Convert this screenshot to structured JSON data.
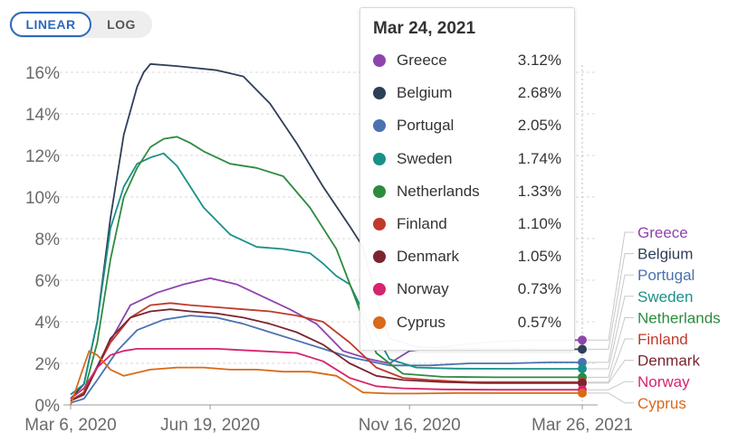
{
  "scale_toggle": {
    "linear_label": "LINEAR",
    "log_label": "LOG",
    "selected": "LINEAR"
  },
  "tooltip": {
    "date": "Mar 24, 2021",
    "rows": [
      {
        "name": "Greece",
        "value": "3.12%",
        "color": "#8e44ad"
      },
      {
        "name": "Belgium",
        "value": "2.68%",
        "color": "#2e3f58"
      },
      {
        "name": "Portugal",
        "value": "2.05%",
        "color": "#4a72b0"
      },
      {
        "name": "Sweden",
        "value": "1.74%",
        "color": "#199088"
      },
      {
        "name": "Netherlands",
        "value": "1.33%",
        "color": "#2e8b3e"
      },
      {
        "name": "Finland",
        "value": "1.10%",
        "color": "#c0392b"
      },
      {
        "name": "Denmark",
        "value": "1.05%",
        "color": "#7b2530"
      },
      {
        "name": "Norway",
        "value": "0.73%",
        "color": "#d6246e"
      },
      {
        "name": "Cyprus",
        "value": "0.57%",
        "color": "#d86a1a"
      }
    ]
  },
  "chart_data": {
    "type": "line",
    "x_ticks": [
      "Mar 6, 2020",
      "Jun 19, 2020",
      "Nov 16, 2020",
      "Mar 26, 2021"
    ],
    "x_tick_days": [
      0,
      105,
      255,
      385
    ],
    "y_ticks": [
      "0%",
      "2%",
      "4%",
      "6%",
      "8%",
      "10%",
      "12%",
      "14%",
      "16%"
    ],
    "y_tick_values": [
      0,
      2,
      4,
      6,
      8,
      10,
      12,
      14,
      16
    ],
    "ylim": [
      0,
      16.5
    ],
    "xlim": [
      0,
      385
    ],
    "grid": true,
    "x_unit": "days from Mar 6, 2020",
    "series": [
      {
        "name": "Greece",
        "color": "#8e44ad",
        "x": [
          0,
          10,
          25,
          45,
          65,
          85,
          105,
          125,
          145,
          165,
          185,
          205,
          225,
          240,
          255,
          280,
          310,
          340,
          370,
          385
        ],
        "y": [
          0.2,
          0.6,
          2.5,
          4.8,
          5.4,
          5.8,
          6.1,
          5.8,
          5.2,
          4.6,
          3.9,
          2.6,
          2.2,
          2.0,
          2.6,
          2.8,
          3.0,
          3.1,
          3.1,
          3.12
        ]
      },
      {
        "name": "Belgium",
        "color": "#2e3f58",
        "x": [
          0,
          10,
          20,
          30,
          40,
          50,
          55,
          60,
          80,
          110,
          130,
          150,
          170,
          190,
          210,
          220,
          230,
          240,
          260,
          290,
          330,
          385
        ],
        "y": [
          0.3,
          1.0,
          4.0,
          9.0,
          13.0,
          15.3,
          16.0,
          16.4,
          16.3,
          16.1,
          15.8,
          14.5,
          12.6,
          10.5,
          8.6,
          7.6,
          5.2,
          3.2,
          2.8,
          2.7,
          2.7,
          2.68
        ]
      },
      {
        "name": "Portugal",
        "color": "#4a72b0",
        "x": [
          0,
          10,
          20,
          35,
          50,
          70,
          90,
          110,
          130,
          150,
          170,
          190,
          210,
          240,
          270,
          300,
          330,
          360,
          385
        ],
        "y": [
          0.1,
          0.3,
          1.2,
          2.6,
          3.6,
          4.1,
          4.3,
          4.2,
          3.9,
          3.5,
          3.1,
          2.7,
          2.3,
          1.9,
          1.9,
          2.0,
          2.0,
          2.05,
          2.05
        ]
      },
      {
        "name": "Sweden",
        "color": "#199088",
        "x": [
          0,
          10,
          20,
          30,
          40,
          50,
          60,
          70,
          80,
          100,
          120,
          140,
          160,
          180,
          190,
          200,
          210,
          220,
          240,
          260,
          290,
          330,
          385
        ],
        "y": [
          0.5,
          1.0,
          4.0,
          8.5,
          10.5,
          11.6,
          11.9,
          12.1,
          11.5,
          9.5,
          8.2,
          7.6,
          7.5,
          7.3,
          6.8,
          6.2,
          5.8,
          4.5,
          2.2,
          1.8,
          1.75,
          1.74,
          1.74
        ]
      },
      {
        "name": "Netherlands",
        "color": "#2e8b3e",
        "x": [
          0,
          10,
          20,
          30,
          40,
          50,
          60,
          70,
          80,
          90,
          100,
          120,
          140,
          160,
          180,
          200,
          215,
          230,
          250,
          280,
          320,
          385
        ],
        "y": [
          0.2,
          0.6,
          3.0,
          7.0,
          10.0,
          11.4,
          12.4,
          12.8,
          12.9,
          12.6,
          12.2,
          11.6,
          11.4,
          11.0,
          9.5,
          7.5,
          5.0,
          2.5,
          1.5,
          1.35,
          1.33,
          1.33
        ]
      },
      {
        "name": "Finland",
        "color": "#c0392b",
        "x": [
          0,
          10,
          20,
          30,
          45,
          60,
          75,
          90,
          110,
          130,
          150,
          170,
          190,
          210,
          230,
          250,
          270,
          300,
          330,
          360,
          385
        ],
        "y": [
          0.2,
          0.6,
          1.8,
          3.0,
          4.2,
          4.8,
          4.9,
          4.8,
          4.7,
          4.6,
          4.5,
          4.3,
          4.0,
          3.0,
          1.8,
          1.3,
          1.2,
          1.1,
          1.1,
          1.1,
          1.1
        ]
      },
      {
        "name": "Denmark",
        "color": "#7b2530",
        "x": [
          0,
          10,
          20,
          30,
          45,
          60,
          75,
          90,
          110,
          130,
          150,
          170,
          190,
          210,
          230,
          250,
          280,
          310,
          340,
          385
        ],
        "y": [
          0.2,
          0.5,
          1.8,
          3.2,
          4.2,
          4.5,
          4.6,
          4.5,
          4.4,
          4.2,
          3.9,
          3.5,
          2.9,
          2.0,
          1.4,
          1.2,
          1.1,
          1.05,
          1.05,
          1.05
        ]
      },
      {
        "name": "Norway",
        "color": "#d6246e",
        "x": [
          0,
          10,
          20,
          30,
          40,
          50,
          80,
          110,
          140,
          170,
          190,
          210,
          230,
          250,
          280,
          320,
          385
        ],
        "y": [
          0.3,
          0.8,
          1.8,
          2.4,
          2.6,
          2.7,
          2.7,
          2.7,
          2.6,
          2.5,
          2.1,
          1.3,
          0.9,
          0.8,
          0.75,
          0.73,
          0.73
        ]
      },
      {
        "name": "Cyprus",
        "color": "#d86a1a",
        "x": [
          0,
          8,
          14,
          20,
          30,
          40,
          60,
          80,
          100,
          120,
          140,
          160,
          180,
          200,
          210,
          220,
          240,
          260,
          290,
          330,
          385
        ],
        "y": [
          0.0,
          1.5,
          2.6,
          2.4,
          1.7,
          1.4,
          1.7,
          1.8,
          1.8,
          1.7,
          1.7,
          1.6,
          1.6,
          1.4,
          1.0,
          0.6,
          0.55,
          0.55,
          0.57,
          0.57,
          0.57
        ]
      }
    ]
  }
}
